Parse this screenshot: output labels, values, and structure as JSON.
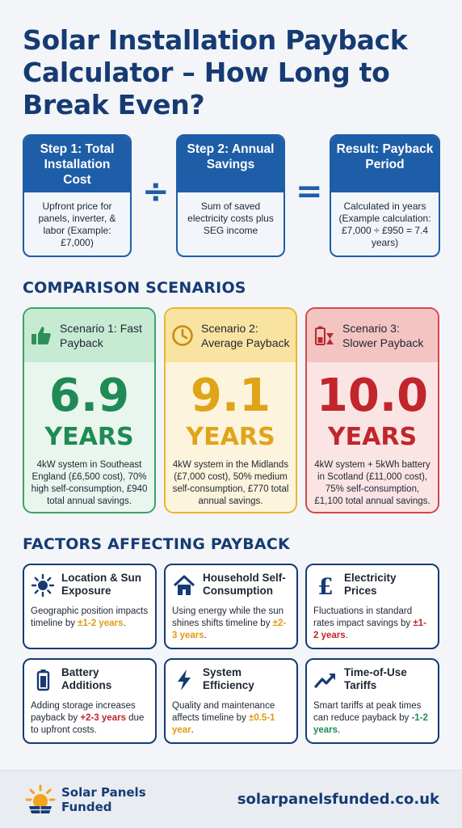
{
  "title": "Solar Installation Payback Calculator – How Long to Break Even?",
  "steps": [
    {
      "heading": "Step 1: Total Installation Cost",
      "body": "Upfront price for panels, inverter, & labor (Example: £7,000)"
    },
    {
      "heading": "Step 2: Annual Savings",
      "body": "Sum of saved electricity costs plus SEG income"
    },
    {
      "heading": "Result: Payback Period",
      "body": "Calculated in years (Example calculation: £7,000 ÷ £950 = 7.4 years)"
    }
  ],
  "operators": {
    "divide": "÷",
    "equals": "="
  },
  "comparison_title": "COMPARISON SCENARIOS",
  "scenarios": [
    {
      "label": "Scenario 1: Fast Payback",
      "value": "6.9",
      "unit": "YEARS",
      "desc": "4kW system in Southeast England (£6,500 cost), 70% high self-consumption, £940 total annual savings.",
      "icon": "thumbs-up-icon",
      "color": "#1f8a55"
    },
    {
      "label": "Scenario 2: Average Payback",
      "value": "9.1",
      "unit": "YEARS",
      "desc": "4kW system in the Midlands (£7,000 cost), 50% medium self-consumption, £770 total annual savings.",
      "icon": "clock-icon",
      "color": "#e0a419"
    },
    {
      "label": "Scenario 3: Slower Payback",
      "value": "10.0",
      "unit": "YEARS",
      "desc": "4kW system + 5kWh battery in Scotland (£11,000 cost), 75% self-consumption, £1,100 total annual savings.",
      "icon": "battery-hourglass-icon",
      "color": "#c0262b"
    }
  ],
  "factors_title": "FACTORS AFFECTING PAYBACK",
  "factors": [
    {
      "label": "Location & Sun Exposure",
      "pre": "Geographic position impacts timeline by ",
      "hl": "±1-2 years",
      "post": ".",
      "icon": "sun-icon"
    },
    {
      "label": "Household Self-Consumption",
      "pre": "Using energy while the sun shines shifts timeline by ",
      "hl": "±2-3 years",
      "post": ".",
      "icon": "house-icon"
    },
    {
      "label": "Electricity Prices",
      "pre": "Fluctuations in standard rates impact savings by ",
      "hl": "±1-2 years",
      "post": ".",
      "icon": "pound-icon"
    },
    {
      "label": "Battery Additions",
      "pre": "Adding storage increases payback by ",
      "hl": "+2-3 years",
      "post": " due to upfront costs.",
      "icon": "battery-icon"
    },
    {
      "label": "System Efficiency",
      "pre": "Quality and maintenance affects timeline by ",
      "hl": "±0.5-1 year",
      "post": ".",
      "icon": "lightning-icon"
    },
    {
      "label": "Time-of-Use Tariffs",
      "pre": "Smart tariffs at peak times can reduce payback by ",
      "hl": "-1-2 years",
      "post": ".",
      "icon": "trend-up-icon"
    }
  ],
  "footer": {
    "brand_line1": "Solar Panels",
    "brand_line2": "Funded",
    "website": "solarpanelsfunded.co.uk"
  }
}
